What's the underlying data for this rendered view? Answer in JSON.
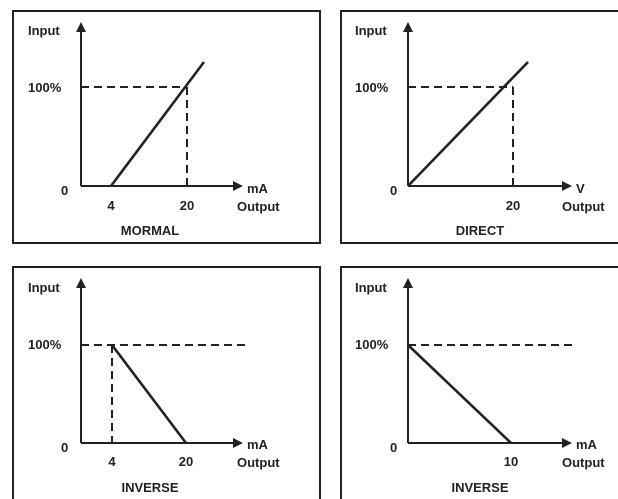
{
  "panels": [
    {
      "caption": "MORMAL",
      "y_label": "Input",
      "y_top_label": "100%",
      "y_zero_label": "0",
      "x_ticks": [
        "4",
        "20"
      ],
      "x_unit": "mA",
      "x_label": "Output"
    },
    {
      "caption": "DIRECT",
      "y_label": "Input",
      "y_top_label": "100%",
      "y_zero_label": "0",
      "x_ticks": [
        "20"
      ],
      "x_unit": "V",
      "x_label": "Output"
    },
    {
      "caption": "INVERSE",
      "y_label": "Input",
      "y_top_label": "100%",
      "y_zero_label": "0",
      "x_ticks": [
        "4",
        "20"
      ],
      "x_unit": "mA",
      "x_label": "Output"
    },
    {
      "caption": "INVERSE",
      "y_label": "Input",
      "y_top_label": "100%",
      "y_zero_label": "0",
      "x_ticks": [
        "10"
      ],
      "x_unit": "mA",
      "x_label": "Output"
    }
  ]
}
